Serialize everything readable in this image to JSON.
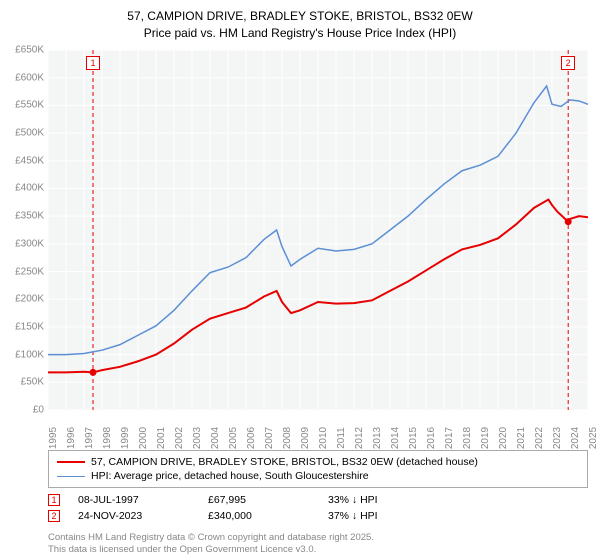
{
  "title": {
    "line1": "57, CAMPION DRIVE, BRADLEY STOKE, BRISTOL, BS32 0EW",
    "line2": "Price paid vs. HM Land Registry's House Price Index (HPI)"
  },
  "chart": {
    "type": "line",
    "background_color": "#f4f5f5",
    "grid_color": "#ffffff",
    "axis_label_color": "#888888",
    "axis_fontsize": 10,
    "ylim": [
      0,
      650000
    ],
    "ytick_step": 50000,
    "y_labels": [
      "£0",
      "£50K",
      "£100K",
      "£150K",
      "£200K",
      "£250K",
      "£300K",
      "£350K",
      "£400K",
      "£450K",
      "£500K",
      "£550K",
      "£600K",
      "£650K"
    ],
    "xlim": [
      1995,
      2025
    ],
    "x_labels": [
      "1995",
      "1996",
      "1997",
      "1998",
      "1999",
      "2000",
      "2001",
      "2002",
      "2003",
      "2004",
      "2005",
      "2006",
      "2007",
      "2008",
      "2009",
      "2010",
      "2011",
      "2012",
      "2013",
      "2014",
      "2015",
      "2016",
      "2017",
      "2018",
      "2019",
      "2020",
      "2021",
      "2022",
      "2023",
      "2024",
      "2025"
    ],
    "series": [
      {
        "name": "property",
        "label": "57, CAMPION DRIVE, BRADLEY STOKE, BRISTOL, BS32 0EW (detached house)",
        "color": "#e60000",
        "line_width": 2,
        "data": [
          [
            1995,
            68000
          ],
          [
            1996,
            68000
          ],
          [
            1997,
            69000
          ],
          [
            1997.5,
            67995
          ],
          [
            1998,
            72000
          ],
          [
            1999,
            78000
          ],
          [
            2000,
            88000
          ],
          [
            2001,
            100000
          ],
          [
            2002,
            120000
          ],
          [
            2003,
            145000
          ],
          [
            2004,
            165000
          ],
          [
            2005,
            175000
          ],
          [
            2006,
            185000
          ],
          [
            2007,
            205000
          ],
          [
            2007.7,
            215000
          ],
          [
            2008,
            195000
          ],
          [
            2008.5,
            175000
          ],
          [
            2009,
            180000
          ],
          [
            2010,
            195000
          ],
          [
            2011,
            192000
          ],
          [
            2012,
            193000
          ],
          [
            2013,
            198000
          ],
          [
            2014,
            215000
          ],
          [
            2015,
            232000
          ],
          [
            2016,
            252000
          ],
          [
            2017,
            272000
          ],
          [
            2018,
            290000
          ],
          [
            2019,
            298000
          ],
          [
            2020,
            310000
          ],
          [
            2021,
            335000
          ],
          [
            2022,
            365000
          ],
          [
            2022.8,
            380000
          ],
          [
            2023,
            370000
          ],
          [
            2023.3,
            358000
          ],
          [
            2023.9,
            340000
          ],
          [
            2024,
            345000
          ],
          [
            2024.5,
            350000
          ],
          [
            2025,
            348000
          ]
        ]
      },
      {
        "name": "hpi",
        "label": "HPI: Average price, detached house, South Gloucestershire",
        "color": "#5b8fd6",
        "line_width": 1.5,
        "data": [
          [
            1995,
            100000
          ],
          [
            1996,
            100000
          ],
          [
            1997,
            102000
          ],
          [
            1998,
            108000
          ],
          [
            1999,
            118000
          ],
          [
            2000,
            135000
          ],
          [
            2001,
            152000
          ],
          [
            2002,
            180000
          ],
          [
            2003,
            215000
          ],
          [
            2004,
            248000
          ],
          [
            2005,
            258000
          ],
          [
            2006,
            275000
          ],
          [
            2007,
            308000
          ],
          [
            2007.7,
            325000
          ],
          [
            2008,
            295000
          ],
          [
            2008.5,
            260000
          ],
          [
            2009,
            272000
          ],
          [
            2010,
            292000
          ],
          [
            2011,
            287000
          ],
          [
            2012,
            290000
          ],
          [
            2013,
            300000
          ],
          [
            2014,
            325000
          ],
          [
            2015,
            350000
          ],
          [
            2016,
            380000
          ],
          [
            2017,
            408000
          ],
          [
            2018,
            432000
          ],
          [
            2019,
            442000
          ],
          [
            2020,
            458000
          ],
          [
            2021,
            500000
          ],
          [
            2022,
            555000
          ],
          [
            2022.7,
            585000
          ],
          [
            2023,
            552000
          ],
          [
            2023.5,
            548000
          ],
          [
            2024,
            560000
          ],
          [
            2024.5,
            558000
          ],
          [
            2025,
            552000
          ]
        ]
      }
    ],
    "markers": [
      {
        "id": "1",
        "year": 1997.5,
        "color": "#e60000",
        "dash": "4,3"
      },
      {
        "id": "2",
        "year": 2023.9,
        "color": "#e60000",
        "dash": "4,3"
      }
    ],
    "data_points": [
      {
        "year": 1997.5,
        "value": 67995,
        "color": "#e60000"
      },
      {
        "year": 2023.9,
        "value": 340000,
        "color": "#e60000"
      }
    ]
  },
  "legend": {
    "items": [
      {
        "color": "#e60000",
        "width": 2,
        "label": "57, CAMPION DRIVE, BRADLEY STOKE, BRISTOL, BS32 0EW (detached house)"
      },
      {
        "color": "#5b8fd6",
        "width": 1.5,
        "label": "HPI: Average price, detached house, South Gloucestershire"
      }
    ]
  },
  "annotations": [
    {
      "id": "1",
      "color": "#e60000",
      "date": "08-JUL-1997",
      "price": "£67,995",
      "pct": "33% ↓ HPI"
    },
    {
      "id": "2",
      "color": "#e60000",
      "date": "24-NOV-2023",
      "price": "£340,000",
      "pct": "37% ↓ HPI"
    }
  ],
  "footer": {
    "line1": "Contains HM Land Registry data © Crown copyright and database right 2025.",
    "line2": "This data is licensed under the Open Government Licence v3.0."
  }
}
